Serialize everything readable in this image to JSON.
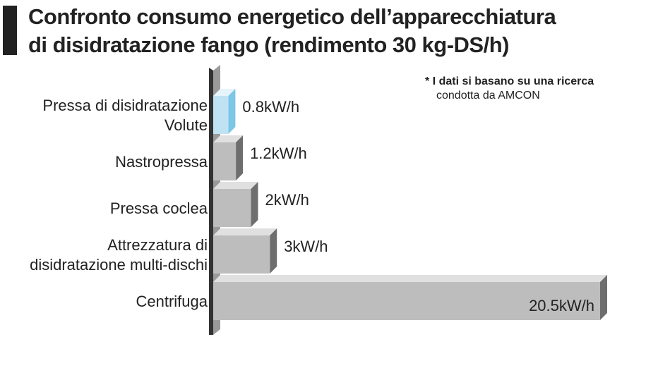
{
  "title": {
    "line1": "Confronto consumo energetico dell’apparecchiatura",
    "line2": "di disidratazione fango (rendimento 30 kg-DS/h)"
  },
  "note": {
    "line1": "* I dati si basano su una ricerca",
    "line2": "condotta da AMCON"
  },
  "colors": {
    "highlight": "#3aa0cc",
    "highlight_bar": "#bfe3f3",
    "bar": "#bdbdbd",
    "bar_side": "#6e6e6e",
    "bar_top": "#e0e0e0"
  },
  "chart_data": {
    "type": "bar",
    "orientation": "horizontal",
    "unit": "kW/h",
    "categories": [
      [
        "Pressa di disidratazione",
        "Volute"
      ],
      [
        "Nastropressa"
      ],
      [
        "Pressa coclea"
      ],
      [
        "Attrezzatura di",
        "disidratazione multi-dischi"
      ],
      [
        "Centrifuga"
      ]
    ],
    "values": [
      0.8,
      1.2,
      2,
      3,
      20.5
    ],
    "value_labels": [
      "0.8kW/h",
      "1.2kW/h",
      "2kW/h",
      "3kW/h",
      "20.5kW/h"
    ],
    "highlight_index": 0,
    "xlim": [
      0,
      20.5
    ],
    "grid": false,
    "legend": "none"
  }
}
